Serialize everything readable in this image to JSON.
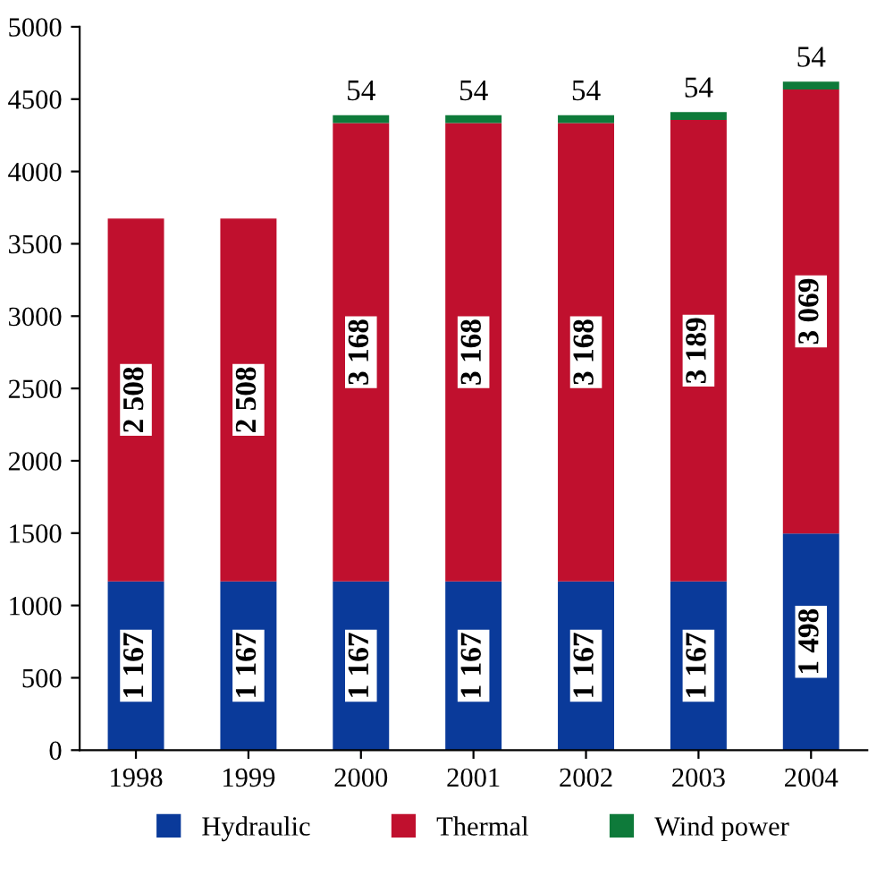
{
  "chart_data": {
    "type": "bar",
    "stacked": true,
    "categories": [
      "1998",
      "1999",
      "2000",
      "2001",
      "2002",
      "2003",
      "2004"
    ],
    "series": [
      {
        "name": "Hydraulic",
        "color": "#0a3a9a",
        "values": [
          1167,
          1167,
          1167,
          1167,
          1167,
          1167,
          1498
        ],
        "value_labels": [
          "1 167",
          "1 167",
          "1 167",
          "1 167",
          "1 167",
          "1 167",
          "1 498"
        ]
      },
      {
        "name": "Thermal",
        "color": "#c0102e",
        "values": [
          2508,
          2508,
          3168,
          3168,
          3168,
          3189,
          3069
        ],
        "value_labels": [
          "2 508",
          "2 508",
          "3 168",
          "3 168",
          "3 168",
          "3 189",
          "3 069"
        ]
      },
      {
        "name": "Wind power",
        "color": "#0e7a3a",
        "values": [
          null,
          null,
          54,
          54,
          54,
          54,
          54
        ],
        "value_labels": [
          null,
          null,
          "54",
          "54",
          "54",
          "54",
          "54"
        ]
      }
    ],
    "ylim": [
      0,
      5000
    ],
    "yticks": [
      0,
      500,
      1000,
      1500,
      2000,
      2500,
      3000,
      3500,
      4000,
      4500,
      5000
    ],
    "grid": false,
    "legend": "bottom"
  }
}
